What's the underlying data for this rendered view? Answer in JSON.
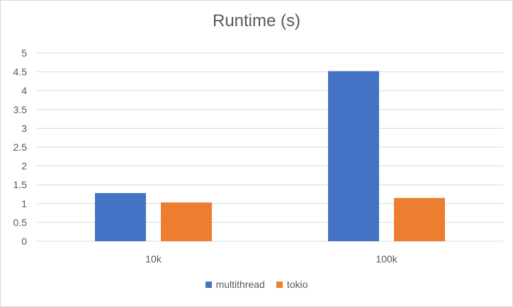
{
  "chart_data": {
    "type": "bar",
    "title": "Runtime (s)",
    "xlabel": "",
    "ylabel": "",
    "categories": [
      "10k",
      "100k"
    ],
    "series": [
      {
        "name": "multithread",
        "values": [
          1.28,
          4.52
        ],
        "color": "#4472C4"
      },
      {
        "name": "tokio",
        "values": [
          1.03,
          1.15
        ],
        "color": "#ED7D31"
      }
    ],
    "ylim": [
      0,
      5
    ],
    "yticks": [
      "0",
      "0.5",
      "1",
      "1.5",
      "2",
      "2.5",
      "3",
      "3.5",
      "4",
      "4.5",
      "5"
    ],
    "grid": true,
    "legend_position": "bottom"
  }
}
